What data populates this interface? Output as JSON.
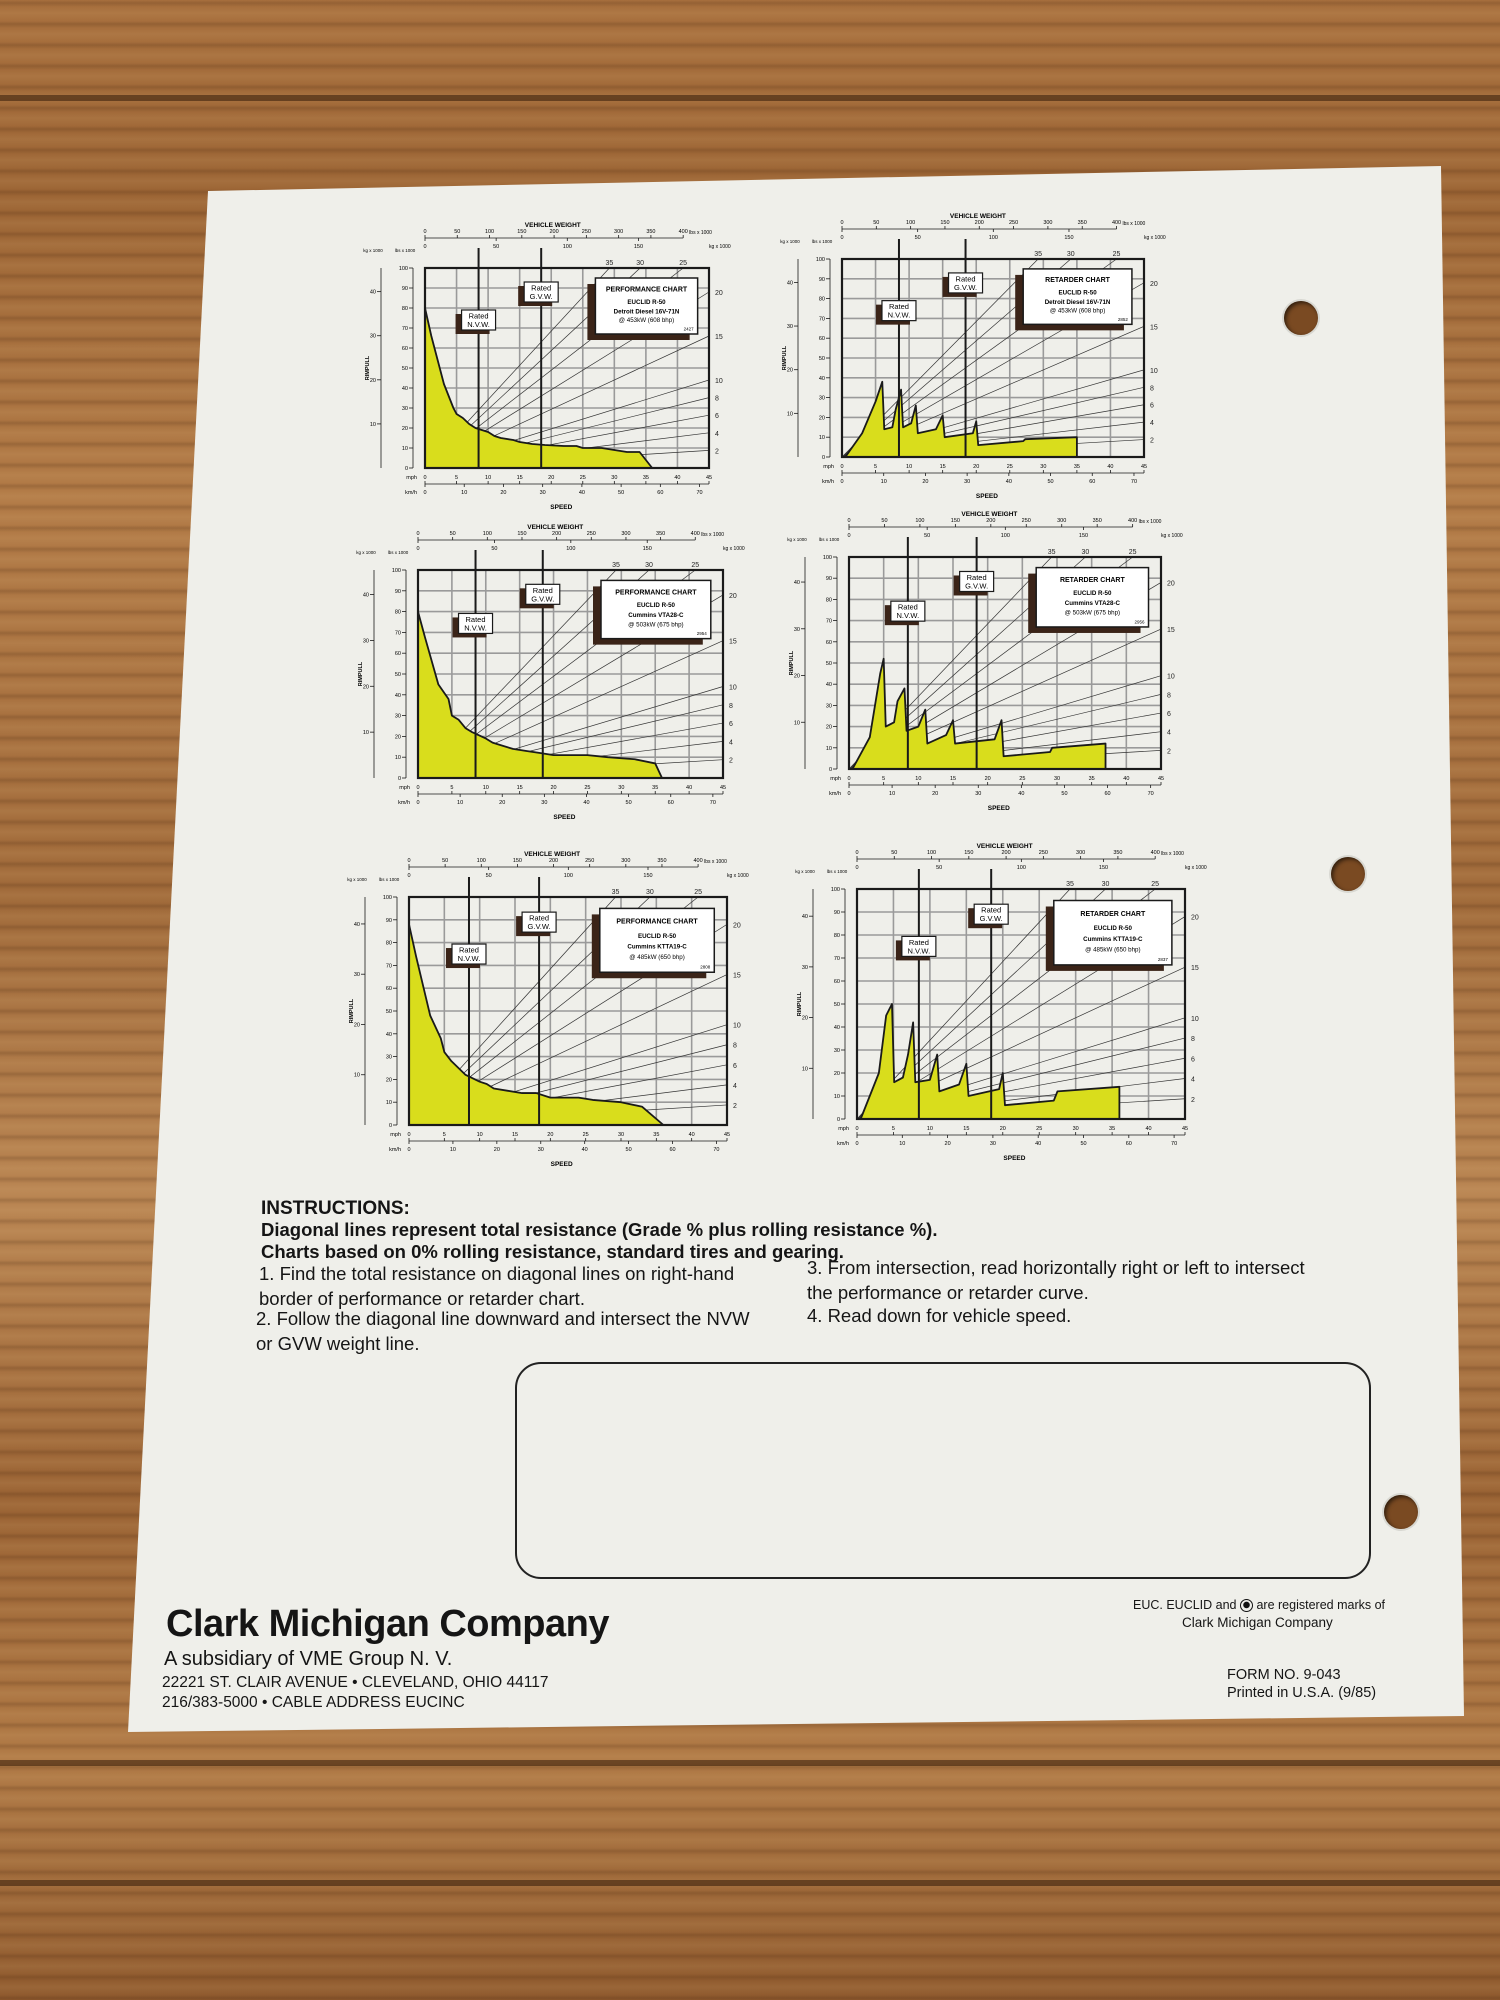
{
  "document": {
    "instructions": {
      "title": "INSTRUCTIONS:",
      "line1": "Diagonal lines represent total resistance (Grade % plus rolling resistance %).",
      "line2": "Charts based on 0% rolling resistance, standard tires and gearing.",
      "steps": [
        "1. Find the total resistance on diagonal lines on right-hand border of performance or retarder chart.",
        "2. Follow the diagonal line downward and intersect the NVW or GVW weight line.",
        "3. From intersection, read horizontally right or left to intersect the performance or retarder curve.",
        "4. Read down for vehicle speed."
      ]
    },
    "footer": {
      "company": "Clark Michigan Company",
      "subsidiary": "A subsidiary of VME Group N. V.",
      "address": "22221 ST. CLAIR AVENUE • CLEVELAND, OHIO 44117",
      "phone": "216/383-5000 • CABLE ADDRESS EUCINC",
      "marks_pre": "EUC. EUCLID and",
      "marks_post": "are registered marks of",
      "marks_owner": "Clark Michigan Company",
      "form_no": "FORM NO. 9-043",
      "printed": "Printed in U.S.A. (9/85)"
    },
    "colors": {
      "curve_fill": "#d9dd1c",
      "ink": "#1a1a1a",
      "grid": "#9a9a9a",
      "label_shadow": "#3b2418"
    }
  },
  "axes": {
    "weight_title": "VEHICLE WEIGHT",
    "weight_lbs_unit": "lbs x 1000",
    "weight_kg_unit": "kg x 1000",
    "weight_lbs_ticks": [
      0,
      50,
      100,
      150,
      200,
      250,
      300,
      350,
      400
    ],
    "weight_kg_ticks": [
      0,
      50,
      100,
      150
    ],
    "weight_lbs_range": [
      0,
      440
    ],
    "rimpull_title": "RIMPULL",
    "rimpull_lbs_unit": "lbs x 1000",
    "rimpull_kg_unit": "kg x 1000",
    "rimpull_lbs_ticks": [
      0,
      10,
      20,
      30,
      40,
      50,
      60,
      70,
      80,
      90,
      100
    ],
    "rimpull_kg_ticks": [
      10,
      20,
      30,
      40
    ],
    "speed_title": "SPEED",
    "mph_label": "mph",
    "kmh_label": "km/h",
    "mph_ticks": [
      0,
      5,
      10,
      15,
      20,
      25,
      30,
      35,
      40,
      45
    ],
    "kmh_ticks": [
      0,
      10,
      20,
      30,
      40,
      50,
      60,
      70
    ],
    "resistance_lines": [
      2,
      4,
      6,
      8,
      10,
      15,
      20,
      25,
      30,
      35
    ],
    "nvw_label": [
      "Rated",
      "N.V.W."
    ],
    "gvw_label": [
      "Rated",
      "G.V.W."
    ]
  },
  "chart_data": [
    {
      "type": "area",
      "title": "PERFORMANCE CHART",
      "model": "EUCLID R-50",
      "engine": "Detroit Diesel 16V-71N",
      "power": "@ 453kW (608 bhp)",
      "code": "2427",
      "xlim": [
        0,
        45
      ],
      "ylim": [
        0,
        100
      ],
      "grid": true,
      "nvw_klbs": 83,
      "gvw_klbs": 180,
      "points": [
        [
          0,
          80
        ],
        [
          1,
          66
        ],
        [
          3,
          42
        ],
        [
          4.5,
          30
        ],
        [
          5,
          27
        ],
        [
          6,
          25
        ],
        [
          7,
          22
        ],
        [
          8,
          20
        ],
        [
          10,
          18
        ],
        [
          11,
          16
        ],
        [
          12,
          15
        ],
        [
          14,
          14
        ],
        [
          15,
          13
        ],
        [
          17,
          12
        ],
        [
          19,
          11.5
        ],
        [
          22,
          11
        ],
        [
          24,
          11
        ],
        [
          25,
          10
        ],
        [
          28,
          10
        ],
        [
          30,
          9
        ],
        [
          32,
          8
        ],
        [
          34,
          8
        ],
        [
          36,
          0
        ]
      ]
    },
    {
      "type": "area",
      "title": "RETARDER CHART",
      "model": "EUCLID R-50",
      "engine": "Detroit Diesel 16V-71N",
      "power": "@ 453kW (608 bhp)",
      "code": "2852",
      "xlim": [
        0,
        45
      ],
      "ylim": [
        0,
        100
      ],
      "grid": true,
      "nvw_klbs": 83,
      "gvw_klbs": 180,
      "points": [
        [
          0.5,
          0
        ],
        [
          3,
          12
        ],
        [
          5,
          28
        ],
        [
          6,
          38
        ],
        [
          6.3,
          14
        ],
        [
          7.5,
          15
        ],
        [
          8,
          24
        ],
        [
          8.8,
          34
        ],
        [
          9.1,
          15
        ],
        [
          10.3,
          17
        ],
        [
          11,
          26
        ],
        [
          11.3,
          12
        ],
        [
          14,
          14
        ],
        [
          15,
          21
        ],
        [
          15.3,
          10
        ],
        [
          19.5,
          12
        ],
        [
          20,
          18
        ],
        [
          20.3,
          6
        ],
        [
          27,
          8
        ],
        [
          27.3,
          9
        ],
        [
          35,
          10
        ],
        [
          35,
          0
        ]
      ]
    },
    {
      "type": "area",
      "title": "PERFORMANCE CHART",
      "model": "EUCLID R-50",
      "engine": "Cummins VTA28-C",
      "power": "@ 503kW (675 bhp)",
      "code": "2954",
      "xlim": [
        0,
        45
      ],
      "ylim": [
        0,
        100
      ],
      "grid": true,
      "nvw_klbs": 83,
      "gvw_klbs": 180,
      "points": [
        [
          0,
          80
        ],
        [
          1,
          68
        ],
        [
          3,
          45
        ],
        [
          4.5,
          38
        ],
        [
          5,
          30
        ],
        [
          6,
          28
        ],
        [
          7,
          24
        ],
        [
          8,
          22
        ],
        [
          10,
          19
        ],
        [
          11,
          17
        ],
        [
          12,
          16
        ],
        [
          14,
          14
        ],
        [
          16,
          13
        ],
        [
          18,
          12
        ],
        [
          20,
          11
        ],
        [
          25,
          11
        ],
        [
          28,
          10
        ],
        [
          32,
          9
        ],
        [
          35,
          7
        ],
        [
          36,
          0
        ]
      ]
    },
    {
      "type": "area",
      "title": "RETARDER CHART",
      "model": "EUCLID R-50",
      "engine": "Cummins VTA28-C",
      "power": "@ 503kW (675 bhp)",
      "code": "2956",
      "xlim": [
        0,
        45
      ],
      "ylim": [
        0,
        100
      ],
      "grid": true,
      "nvw_klbs": 83,
      "gvw_klbs": 180,
      "points": [
        [
          0.5,
          0
        ],
        [
          3,
          15
        ],
        [
          4.5,
          45
        ],
        [
          5,
          52
        ],
        [
          5.3,
          20
        ],
        [
          6.5,
          22
        ],
        [
          7,
          32
        ],
        [
          8,
          38
        ],
        [
          8.3,
          18
        ],
        [
          10,
          20
        ],
        [
          11,
          28
        ],
        [
          11.3,
          12
        ],
        [
          14,
          16
        ],
        [
          15,
          23
        ],
        [
          15.3,
          12
        ],
        [
          21,
          14
        ],
        [
          22,
          23
        ],
        [
          22.3,
          6
        ],
        [
          29,
          8
        ],
        [
          29.3,
          10
        ],
        [
          37,
          12
        ],
        [
          37,
          0
        ]
      ]
    },
    {
      "type": "area",
      "title": "PERFORMANCE CHART",
      "model": "EUCLID R-50",
      "engine": "Cummins KTTA19-C",
      "power": "@ 485kW (650 bhp)",
      "code": "2808",
      "xlim": [
        0,
        45
      ],
      "ylim": [
        0,
        100
      ],
      "grid": true,
      "nvw_klbs": 83,
      "gvw_klbs": 180,
      "points": [
        [
          0,
          88
        ],
        [
          1,
          74
        ],
        [
          3,
          48
        ],
        [
          4.5,
          38
        ],
        [
          5,
          32
        ],
        [
          6,
          28
        ],
        [
          7,
          25
        ],
        [
          8,
          22
        ],
        [
          10,
          19
        ],
        [
          11,
          18
        ],
        [
          12,
          16
        ],
        [
          14,
          15
        ],
        [
          16,
          14
        ],
        [
          18,
          14
        ],
        [
          20,
          12
        ],
        [
          24,
          12
        ],
        [
          26,
          11
        ],
        [
          30,
          10
        ],
        [
          33,
          8
        ],
        [
          36,
          0
        ]
      ]
    },
    {
      "type": "area",
      "title": "RETARDER CHART",
      "model": "EUCLID R-50",
      "engine": "Cummins KTTA19-C",
      "power": "@ 485kW (650 bhp)",
      "code": "2837",
      "xlim": [
        0,
        45
      ],
      "ylim": [
        0,
        100
      ],
      "grid": true,
      "nvw_klbs": 83,
      "gvw_klbs": 180,
      "points": [
        [
          0.5,
          0
        ],
        [
          3,
          20
        ],
        [
          4,
          45
        ],
        [
          4.8,
          50
        ],
        [
          5.1,
          16
        ],
        [
          6.3,
          18
        ],
        [
          7,
          28
        ],
        [
          7.7,
          42
        ],
        [
          8,
          16
        ],
        [
          10,
          17
        ],
        [
          11,
          28
        ],
        [
          11.3,
          12
        ],
        [
          14,
          15
        ],
        [
          15,
          24
        ],
        [
          15.3,
          10
        ],
        [
          19.5,
          13
        ],
        [
          20,
          20
        ],
        [
          20.3,
          6
        ],
        [
          27,
          8
        ],
        [
          27.5,
          12
        ],
        [
          36,
          14
        ],
        [
          36,
          0
        ]
      ]
    }
  ]
}
